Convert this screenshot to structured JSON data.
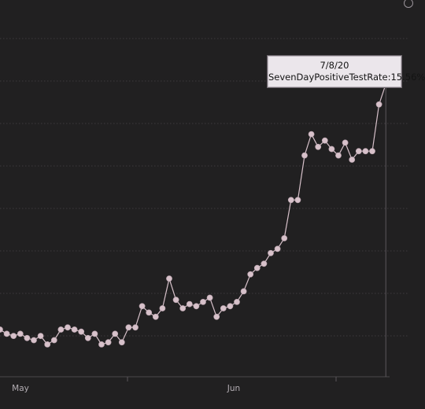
{
  "chart_data": {
    "type": "line",
    "title": "",
    "xlabel": "",
    "ylabel": "",
    "x_tick_labels": [
      "May",
      "Jun"
    ],
    "grid": true,
    "color": "#d7c1ca",
    "series": [
      {
        "values": [
          4.0,
          3.8,
          3.7,
          3.8,
          3.6,
          3.5,
          3.7,
          3.3,
          3.5,
          4.0,
          4.1,
          4.0,
          3.9,
          3.6,
          3.8,
          3.3,
          3.4,
          3.8,
          3.4,
          4.1,
          4.1,
          5.1,
          4.8,
          4.6,
          5.0,
          6.4,
          5.4,
          5.0,
          5.2,
          5.1,
          5.3,
          5.5,
          4.6,
          5.0,
          5.1,
          5.3,
          5.8,
          6.6,
          6.9,
          7.1,
          7.6,
          7.8,
          8.3,
          10.1,
          10.1,
          12.2,
          13.2,
          12.6,
          12.9,
          12.5,
          12.2,
          12.8,
          12.0,
          12.4,
          12.4,
          12.4,
          14.6,
          15.56
        ]
      }
    ]
  },
  "tooltip": {
    "date": "7/8/20",
    "text": "SevenDayPositiveTestRate:15.56%"
  }
}
